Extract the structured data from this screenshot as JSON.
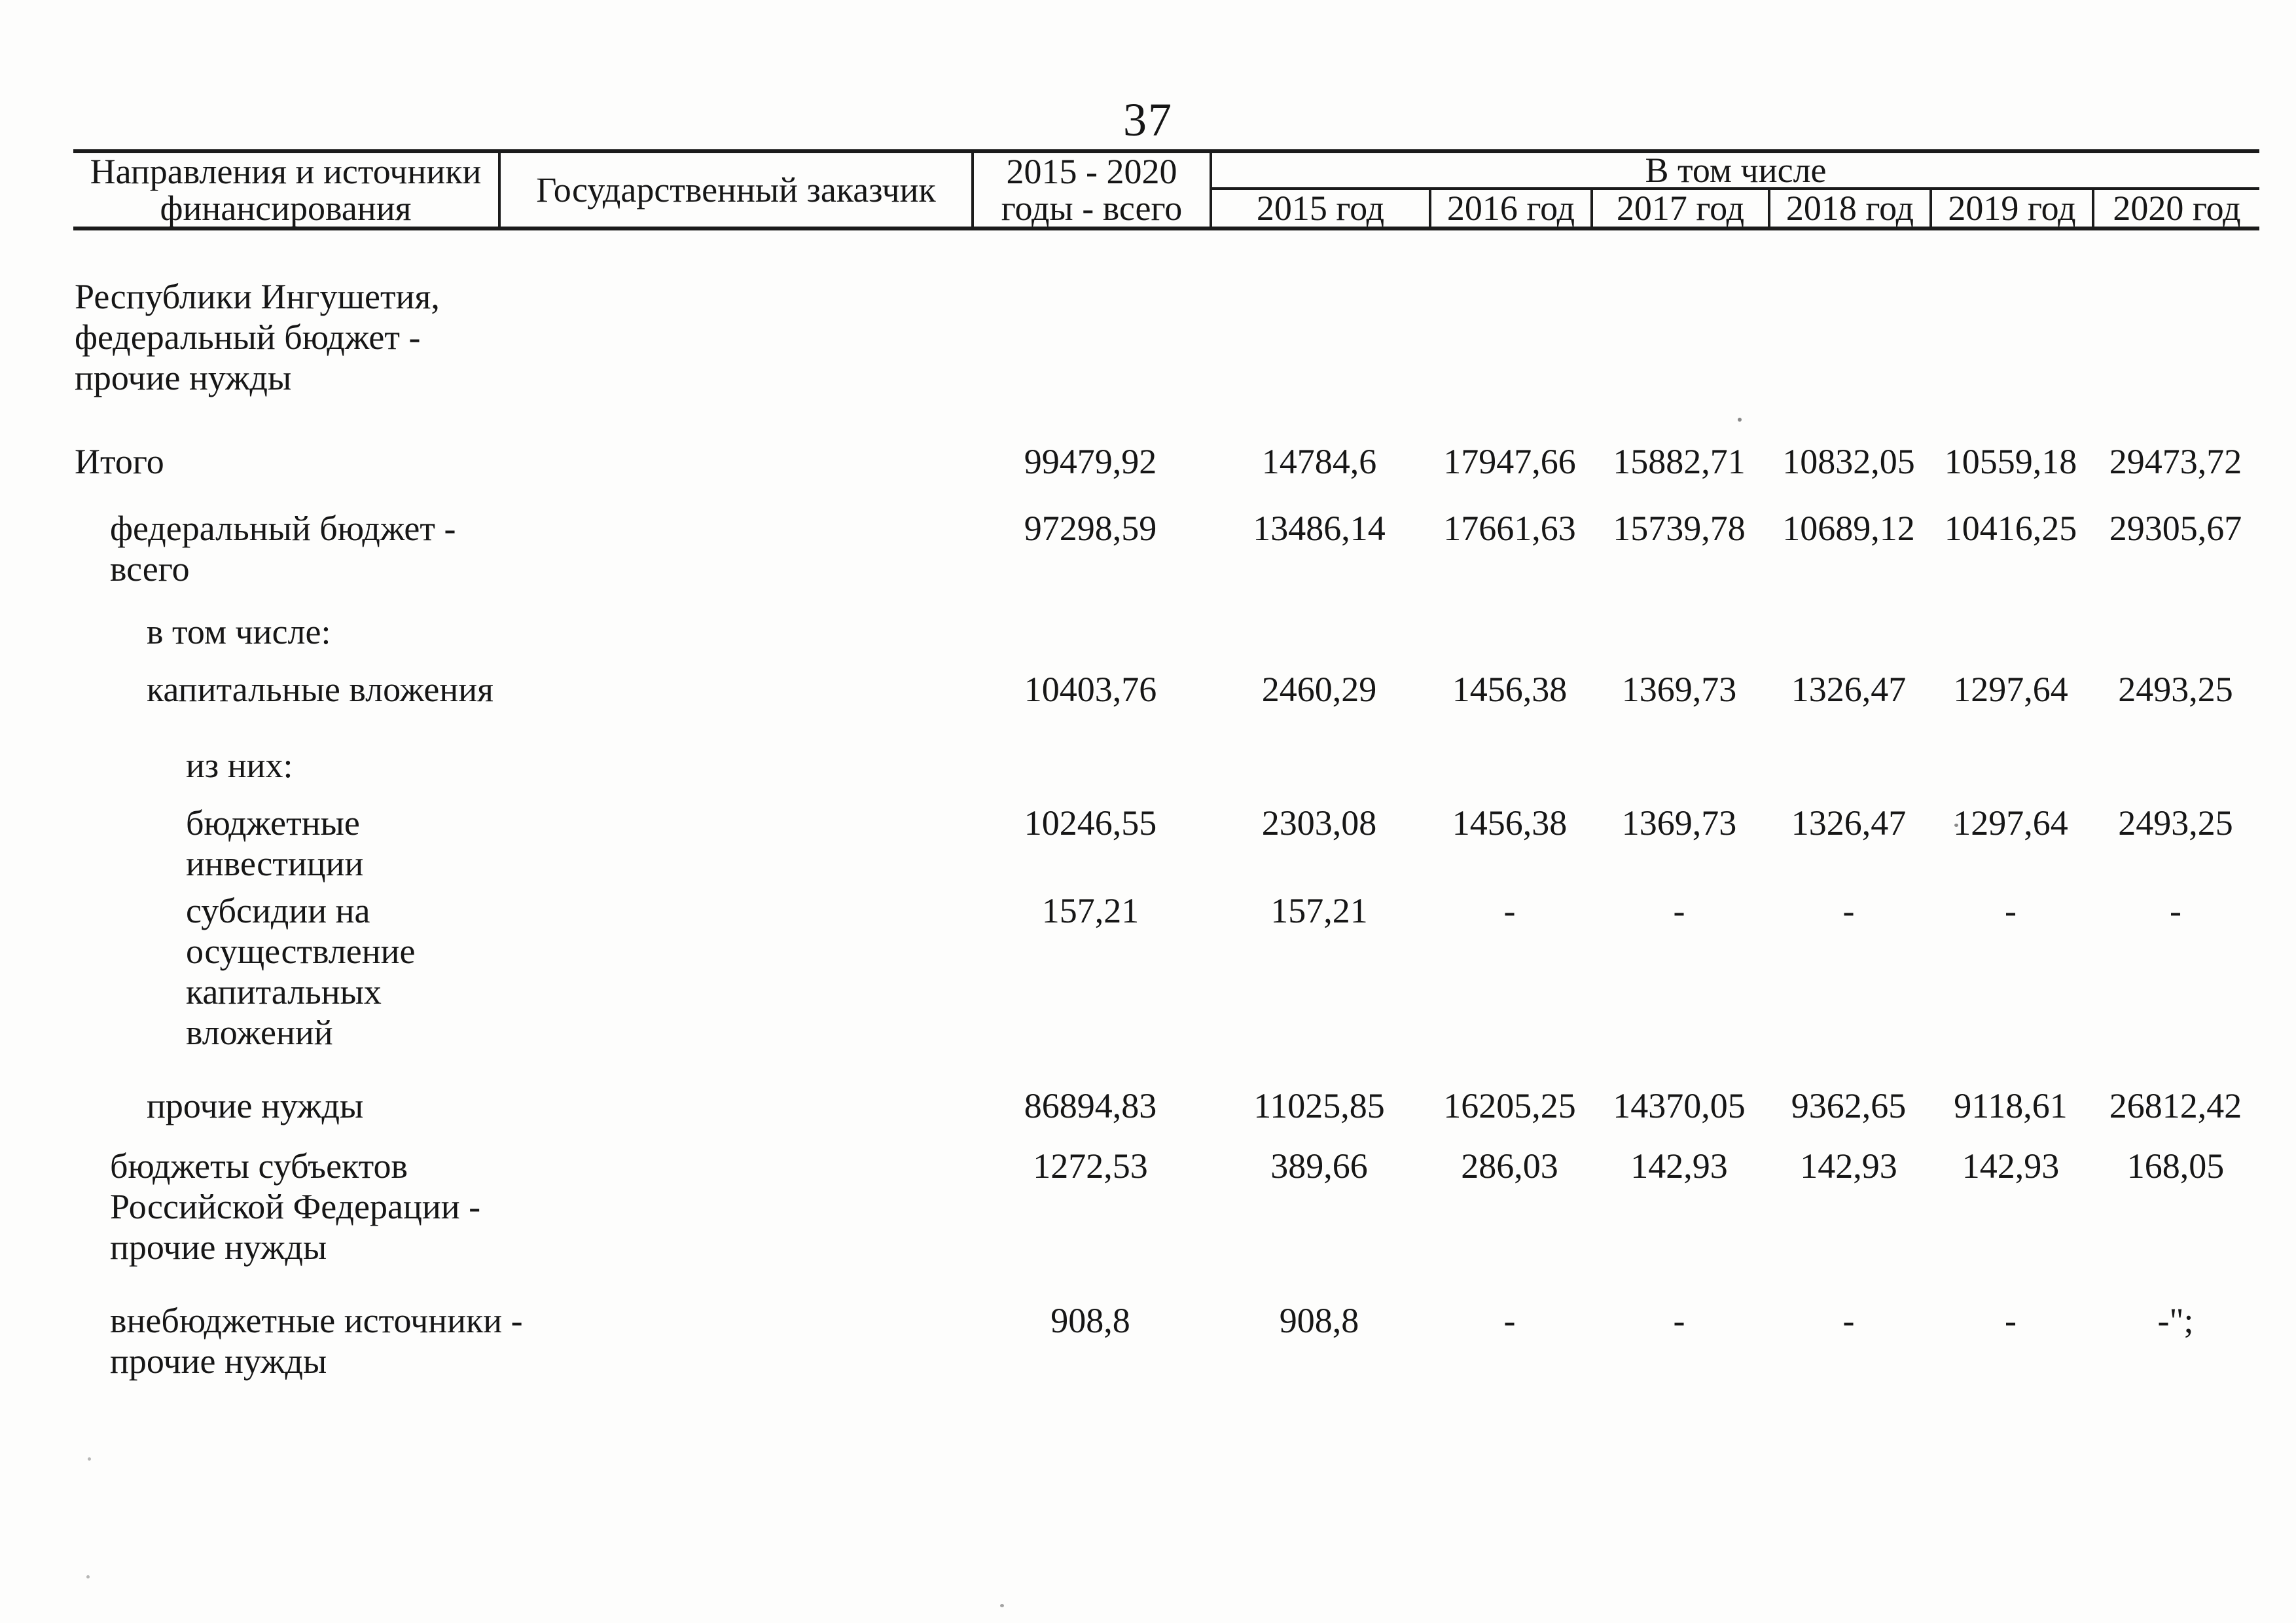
{
  "page": {
    "number": "37"
  },
  "table": {
    "header": {
      "col1": "Направления и источники\nфинансирования",
      "col2": "Государственный заказчик",
      "col3": "2015 - 2020\nгоды - всего",
      "group": "В том числе",
      "years": [
        "2015 год",
        "2016 год",
        "2017 год",
        "2018 год",
        "2019 год",
        "2020 год"
      ]
    },
    "rows": [
      {
        "label": "Республики Ингушетия,\nфедеральный бюджет -\nпрочие нужды",
        "values": [
          "",
          "",
          "",
          "",
          "",
          "",
          ""
        ]
      },
      {
        "label": "Итого",
        "values": [
          "99479,92",
          "14784,6",
          "17947,66",
          "15882,71",
          "10832,05",
          "10559,18",
          "29473,72"
        ]
      },
      {
        "label": "федеральный бюджет -\nвсего",
        "values": [
          "97298,59",
          "13486,14",
          "17661,63",
          "15739,78",
          "10689,12",
          "10416,25",
          "29305,67"
        ]
      },
      {
        "label": "в том числе:",
        "values": [
          "",
          "",
          "",
          "",
          "",
          "",
          ""
        ]
      },
      {
        "label": "капитальные вложения",
        "values": [
          "10403,76",
          "2460,29",
          "1456,38",
          "1369,73",
          "1326,47",
          "1297,64",
          "2493,25"
        ]
      },
      {
        "label": "из них:",
        "values": [
          "",
          "",
          "",
          "",
          "",
          "",
          ""
        ]
      },
      {
        "label": "бюджетные\nинвестиции",
        "values": [
          "10246,55",
          "2303,08",
          "1456,38",
          "1369,73",
          "1326,47",
          "1297,64",
          "2493,25"
        ]
      },
      {
        "label": "субсидии на\nосуществление\nкапитальных\nвложений",
        "values": [
          "157,21",
          "157,21",
          "-",
          "-",
          "-",
          "-",
          "-"
        ]
      },
      {
        "label": "прочие нужды",
        "values": [
          "86894,83",
          "11025,85",
          "16205,25",
          "14370,05",
          "9362,65",
          "9118,61",
          "26812,42"
        ]
      },
      {
        "label": "бюджеты субъектов\nРоссийской Федерации -\nпрочие нужды",
        "values": [
          "1272,53",
          "389,66",
          "286,03",
          "142,93",
          "142,93",
          "142,93",
          "168,05"
        ]
      },
      {
        "label": "внебюджетные источники -\nпрочие нужды",
        "values": [
          "908,8",
          "908,8",
          "-",
          "-",
          "-",
          "-",
          "-\";"
        ]
      }
    ]
  }
}
